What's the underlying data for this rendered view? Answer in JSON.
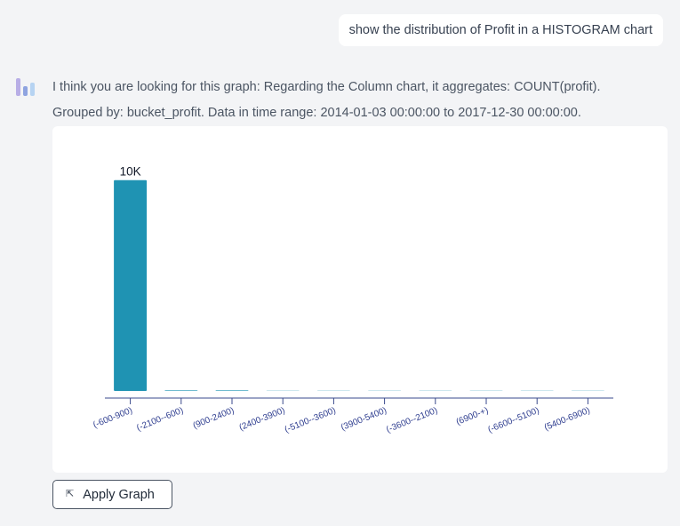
{
  "user_message": "show the distribution of Profit in a HISTOGRAM chart",
  "assistant": {
    "line1": "I think you are looking for this graph:  Regarding the Column chart,  it aggregates: COUNT(profit).",
    "line2": "Grouped by: bucket_profit.  Data in time range: 2014-01-03 00:00:00 to 2017-12-30 00:00:00."
  },
  "apply_button_label": "Apply Graph",
  "colors": {
    "bar": "#1f93b3",
    "axis": "#3a4a8c",
    "tick_label": "#2e3d8f"
  },
  "chart_data": {
    "type": "bar",
    "categories": [
      "(-600-900)",
      "(-2100--600)",
      "(900-2400)",
      "(2400-3900)",
      "(-5100--3600)",
      "(3900-5400)",
      "(-3600--2100)",
      "(6900-+)",
      "(-6600--5100)",
      "(5400-6900)"
    ],
    "values": [
      9970,
      20,
      8,
      4,
      2,
      2,
      1,
      1,
      1,
      1
    ],
    "data_labels": [
      "10K",
      "",
      "",
      "",
      "",
      "",
      "",
      "",
      "",
      ""
    ],
    "ylim": [
      0,
      10000
    ],
    "xlabel": "",
    "ylabel": "",
    "grid": false
  }
}
